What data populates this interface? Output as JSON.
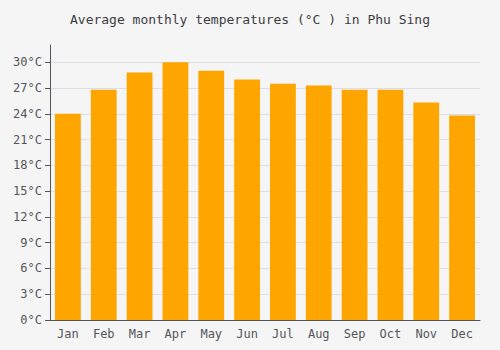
{
  "chart_data": {
    "type": "bar",
    "title": "Average monthly temperatures (°C ) in Phu Sing",
    "categories": [
      "Jan",
      "Feb",
      "Mar",
      "Apr",
      "May",
      "Jun",
      "Jul",
      "Aug",
      "Sep",
      "Oct",
      "Nov",
      "Dec"
    ],
    "values": [
      24.0,
      26.8,
      28.8,
      30.0,
      29.0,
      28.0,
      27.5,
      27.3,
      26.8,
      26.8,
      25.3,
      23.8
    ],
    "color": "#FFA500",
    "ylim": [
      0,
      32
    ],
    "yticks": [
      {
        "value": 0,
        "label": "0°C"
      },
      {
        "value": 3,
        "label": "3°C"
      },
      {
        "value": 6,
        "label": "6°C"
      },
      {
        "value": 9,
        "label": "9°C"
      },
      {
        "value": 12,
        "label": "12°C"
      },
      {
        "value": 15,
        "label": "15°C"
      },
      {
        "value": 18,
        "label": "18°C"
      },
      {
        "value": 21,
        "label": "21°C"
      },
      {
        "value": 24,
        "label": "24°C"
      },
      {
        "value": 27,
        "label": "27°C"
      },
      {
        "value": 30,
        "label": "30°C"
      }
    ],
    "grid": true
  }
}
